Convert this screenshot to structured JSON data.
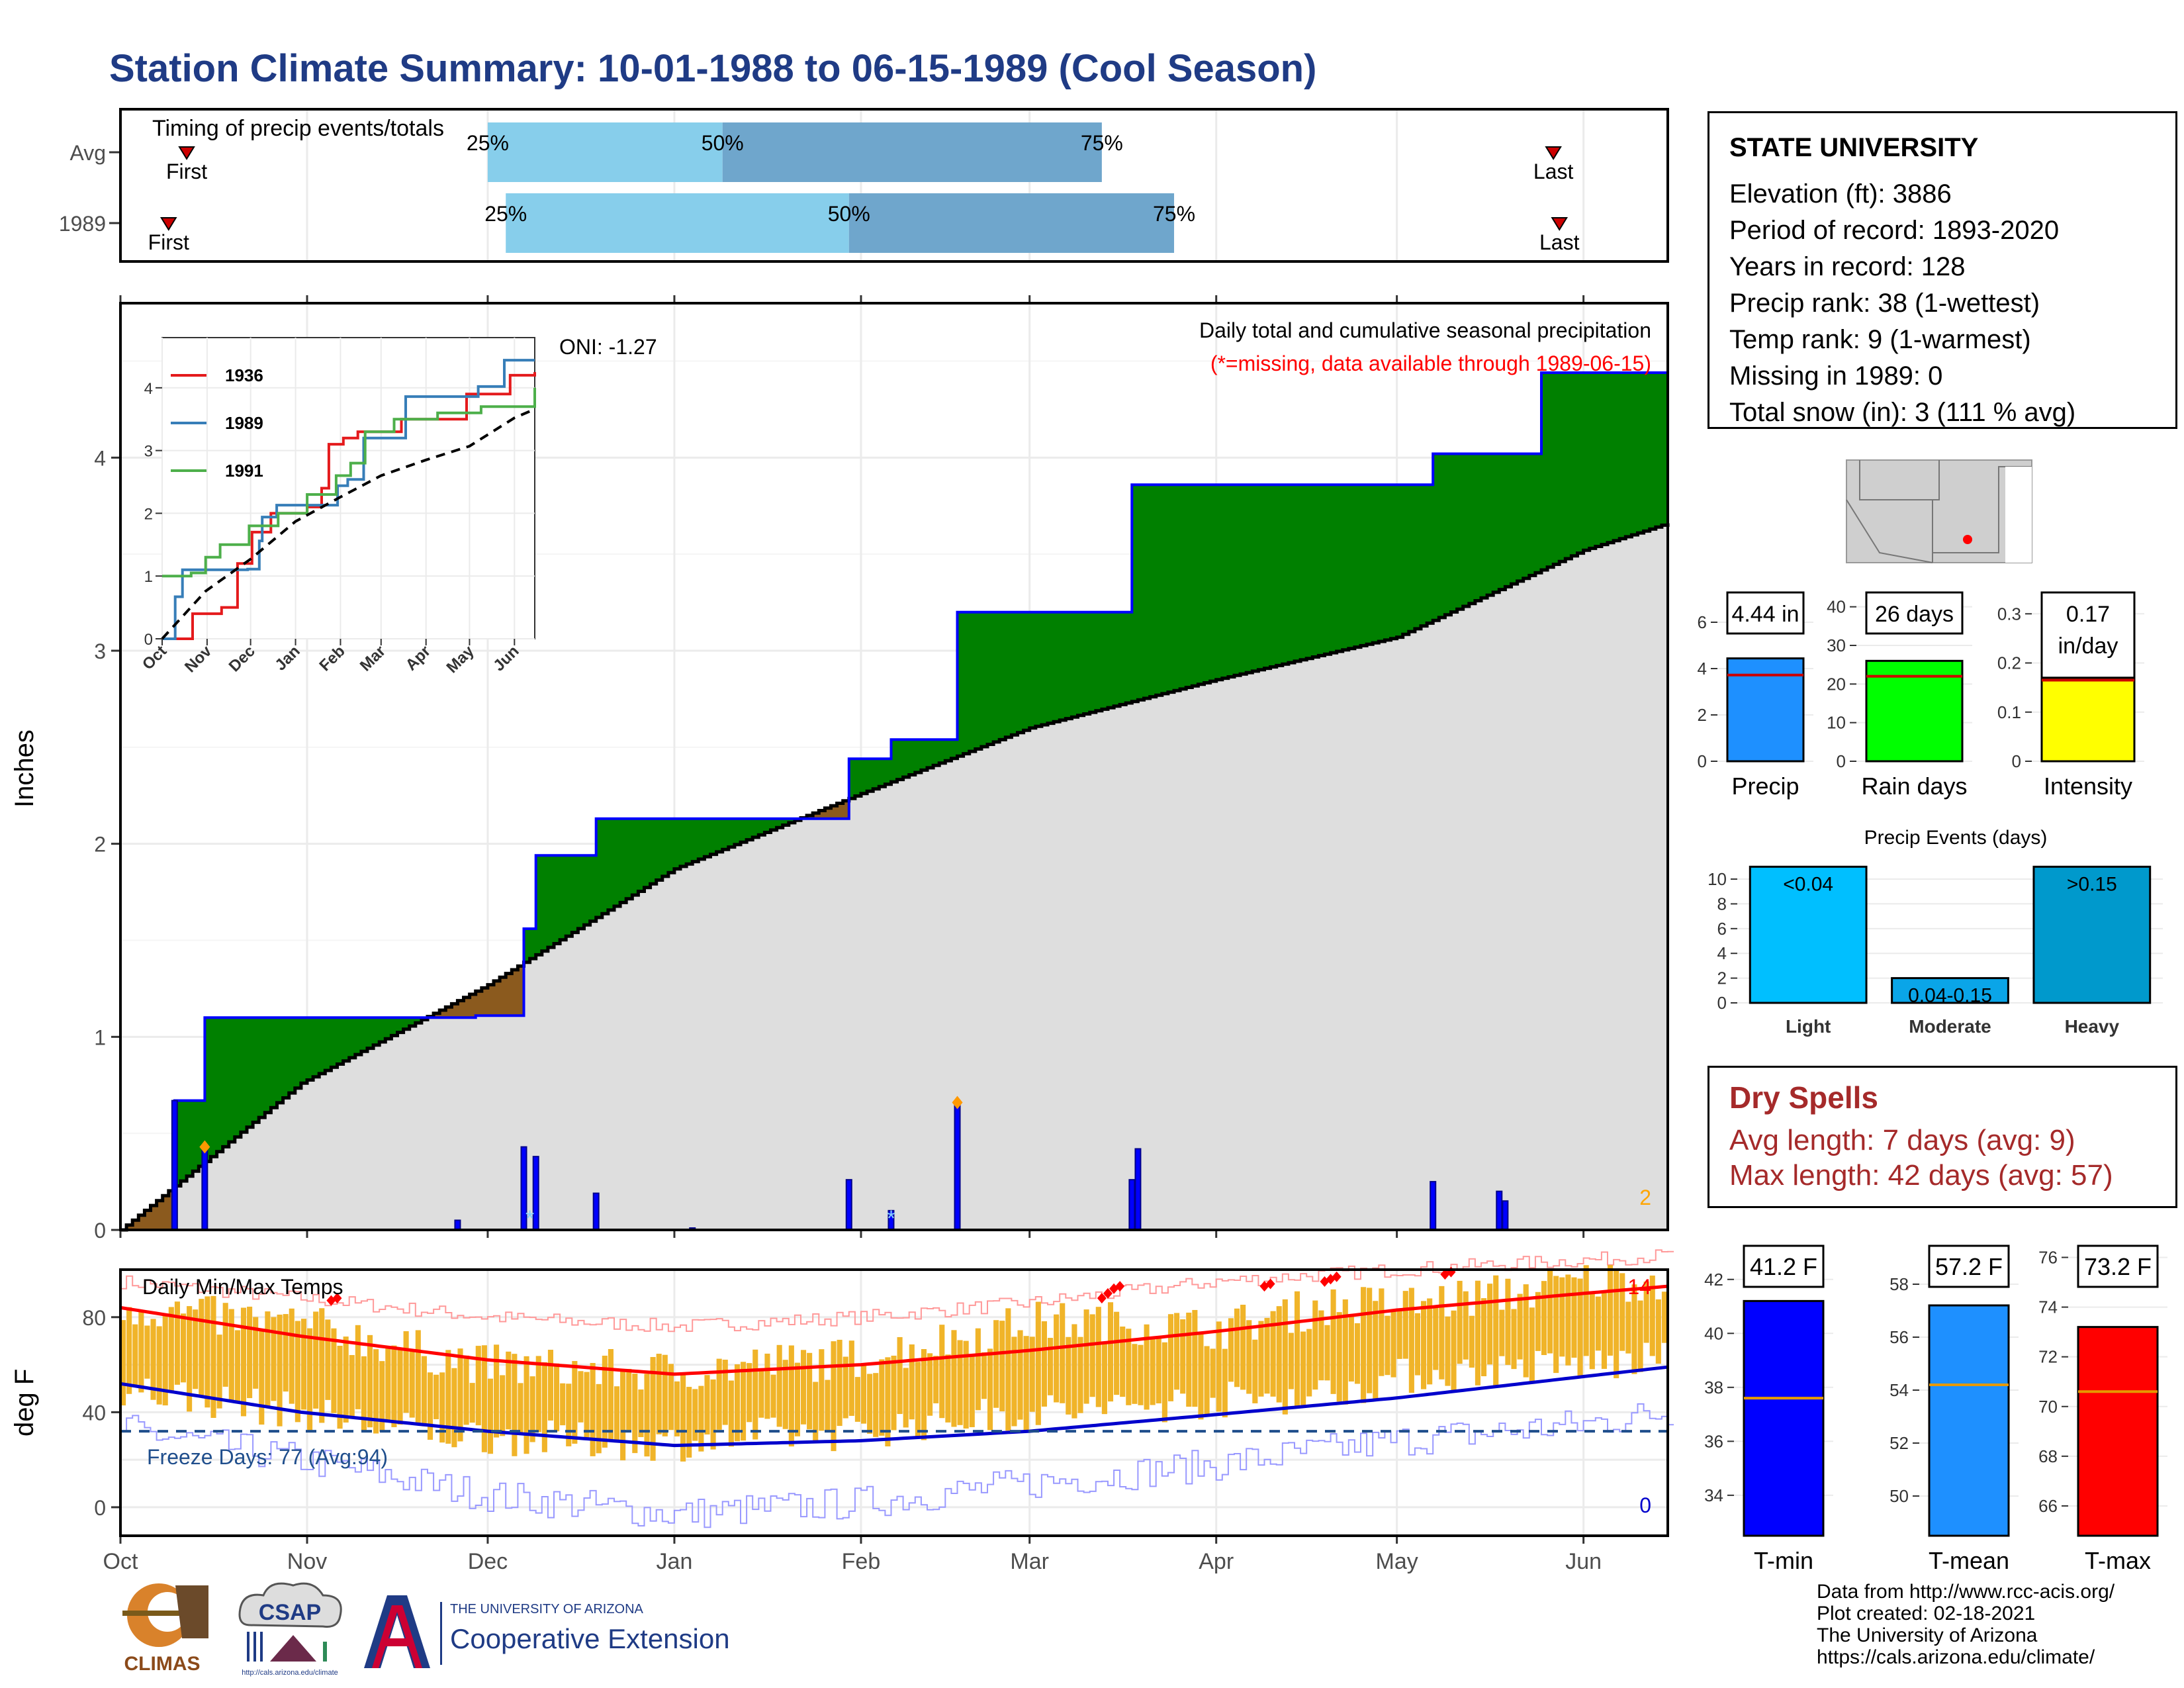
{
  "title": "Station Climate Summary: 10-01-1988 to 06-15-1989 (Cool Season)",
  "station": {
    "name": "STATE UNIVERSITY",
    "lines": [
      "Elevation (ft): 3886",
      "Period of record: 1893-2020",
      "Years in record: 128",
      "Precip rank: 38 (1-wettest)",
      "Temp rank: 9 (1-warmest)",
      "Missing in 1989: 0",
      "Total snow (in): 3 (111 % avg)"
    ]
  },
  "dry_spells": {
    "title": "Dry Spells",
    "avg": "Avg length: 7 days (avg: 9)",
    "max": "Max length: 42 days (avg: 57)"
  },
  "credits": [
    "Data from http://www.rcc-acis.org/",
    "Plot created: 02-18-2021",
    "The University of Arizona",
    "https://cals.arizona.edu/climate/"
  ],
  "logos": {
    "climas": "CLIMAS",
    "csap": "CSAP",
    "csap_url": "http://cals.arizona.edu/climate",
    "ua_small": "THE UNIVERSITY OF ARIZONA",
    "ua_big": "Cooperative Extension"
  },
  "colors": {
    "title": "#1f3b85",
    "precip_fill": "#008000",
    "deficit_fill": "#8b5a1e",
    "normal_fill": "#dedede",
    "daily_bar": "#0000ff",
    "temp_bar": "#f0b429",
    "tmax_line": "#ff0000",
    "tmin_line": "#0000cc",
    "timing_light": "#87ceeb",
    "timing_dark": "#6fa6cc",
    "dry_text": "#a52a2a"
  },
  "chart_data": [
    {
      "id": "timing",
      "type": "bar",
      "title": "Timing of precip events/totals",
      "rows": [
        {
          "label": "Avg",
          "first": "Oct 12",
          "p25": "Dec 1",
          "p50": "Jan 9",
          "p75": "Mar 13",
          "last": "May 27"
        },
        {
          "label": "1989",
          "first": "Oct 9",
          "p25": "Dec 4",
          "p50": "Jan 30",
          "p75": "Mar 25",
          "last": "May 28"
        }
      ],
      "marker_labels": {
        "first": "First",
        "last": "Last",
        "p25": "25%",
        "p50": "50%",
        "p75": "75%"
      }
    },
    {
      "id": "precip",
      "type": "area",
      "title": "Daily total and cumulative seasonal precipitation",
      "subtitle": "(*=missing, data available through 1989-06-15)",
      "ylabel": "Inches",
      "oni": "ONI: -1.27",
      "ylim": [
        0,
        4.8
      ],
      "yticks": [
        0,
        1,
        2,
        3,
        4
      ],
      "xticks": [
        "Oct",
        "Nov",
        "Dec",
        "Jan",
        "Feb",
        "Mar",
        "Apr",
        "May",
        "Jun"
      ],
      "count_label": "2",
      "cumulative_1989": [
        [
          0,
          0
        ],
        [
          9,
          0.67
        ],
        [
          14,
          1.1
        ],
        [
          59,
          1.11
        ],
        [
          67,
          1.56
        ],
        [
          69,
          1.94
        ],
        [
          79,
          2.13
        ],
        [
          121,
          2.44
        ],
        [
          128,
          2.54
        ],
        [
          139,
          3.2
        ],
        [
          168,
          3.86
        ],
        [
          218,
          4.02
        ],
        [
          236,
          4.44
        ],
        [
          257,
          4.44
        ]
      ],
      "normal_cumulative": [
        [
          0,
          0
        ],
        [
          30,
          0.76
        ],
        [
          61,
          1.27
        ],
        [
          92,
          1.87
        ],
        [
          123,
          2.26
        ],
        [
          151,
          2.6
        ],
        [
          182,
          2.85
        ],
        [
          212,
          3.07
        ],
        [
          243,
          3.52
        ],
        [
          257,
          3.66
        ]
      ],
      "daily": [
        [
          9,
          0.67
        ],
        [
          14,
          0.43
        ],
        [
          56,
          0.05
        ],
        [
          67,
          0.43
        ],
        [
          69,
          0.38
        ],
        [
          79,
          0.19
        ],
        [
          95,
          0.01
        ],
        [
          121,
          0.26
        ],
        [
          128,
          0.1
        ],
        [
          139,
          0.66
        ],
        [
          168,
          0.26
        ],
        [
          169,
          0.42
        ],
        [
          218,
          0.25
        ],
        [
          229,
          0.2
        ],
        [
          230,
          0.15
        ]
      ],
      "snow": [
        [
          68,
          0.1
        ],
        [
          128,
          0.1
        ]
      ],
      "records": [
        [
          14,
          0.43
        ],
        [
          139,
          0.66
        ]
      ]
    },
    {
      "id": "inset",
      "type": "line",
      "xticks": [
        "Oct",
        "Nov",
        "Dec",
        "Jan",
        "Feb",
        "Mar",
        "Apr",
        "May",
        "Jun"
      ],
      "ylim": [
        0,
        4.8
      ],
      "yticks": [
        0,
        1,
        2,
        3,
        4
      ],
      "series": [
        {
          "name": "1936",
          "color": "#e41a1c",
          "values": [
            [
              0,
              0
            ],
            [
              20,
              0
            ],
            [
              21,
              0.4
            ],
            [
              40,
              0.4
            ],
            [
              41,
              0.5
            ],
            [
              50,
              0.5
            ],
            [
              52,
              1.2
            ],
            [
              62,
              1.7
            ],
            [
              75,
              2.0
            ],
            [
              100,
              2.1
            ],
            [
              110,
              2.4
            ],
            [
              115,
              3.1
            ],
            [
              125,
              3.2
            ],
            [
              135,
              3.3
            ],
            [
              165,
              3.5
            ],
            [
              210,
              3.9
            ],
            [
              240,
              4.2
            ],
            [
              257,
              4.25
            ]
          ]
        },
        {
          "name": "1989",
          "color": "#377eb8",
          "values": [
            [
              0,
              0
            ],
            [
              9,
              0.67
            ],
            [
              14,
              1.1
            ],
            [
              59,
              1.11
            ],
            [
              67,
              1.56
            ],
            [
              69,
              1.94
            ],
            [
              79,
              2.13
            ],
            [
              121,
              2.44
            ],
            [
              128,
              2.54
            ],
            [
              139,
              3.2
            ],
            [
              168,
              3.86
            ],
            [
              218,
              4.02
            ],
            [
              236,
              4.44
            ],
            [
              257,
              4.44
            ]
          ]
        },
        {
          "name": "1991",
          "color": "#4daf4a",
          "values": [
            [
              0,
              1.0
            ],
            [
              20,
              1.05
            ],
            [
              30,
              1.3
            ],
            [
              40,
              1.5
            ],
            [
              60,
              1.8
            ],
            [
              80,
              2.0
            ],
            [
              100,
              2.3
            ],
            [
              120,
              2.6
            ],
            [
              130,
              2.8
            ],
            [
              140,
              3.3
            ],
            [
              160,
              3.5
            ],
            [
              190,
              3.6
            ],
            [
              220,
              3.7
            ],
            [
              257,
              4.0
            ]
          ]
        },
        {
          "name": "",
          "color": "#000000",
          "dash": true,
          "values": [
            [
              0,
              0
            ],
            [
              30,
              0.76
            ],
            [
              61,
              1.27
            ],
            [
              92,
              1.87
            ],
            [
              123,
              2.26
            ],
            [
              151,
              2.6
            ],
            [
              182,
              2.85
            ],
            [
              212,
              3.07
            ],
            [
              243,
              3.52
            ],
            [
              257,
              3.66
            ]
          ]
        }
      ]
    },
    {
      "id": "rank_bars",
      "type": "bar",
      "panels": [
        {
          "name": "Precip",
          "value": 4.44,
          "avg": 3.72,
          "label": "4.44 in",
          "ylim": [
            0,
            7
          ],
          "yticks": [
            0,
            2,
            4,
            6
          ],
          "color": "#1e90ff"
        },
        {
          "name": "Rain days",
          "value": 26,
          "avg": 22,
          "label": "26 days",
          "ylim": [
            0,
            42
          ],
          "yticks": [
            0,
            10,
            20,
            30,
            40
          ],
          "color": "#00ff00"
        },
        {
          "name": "Intensity",
          "value": 0.17,
          "avg": 0.165,
          "label": "0.17",
          "label2": "in/day",
          "ylim": [
            0,
            0.33
          ],
          "yticks": [
            0.0,
            0.1,
            0.2,
            0.3
          ],
          "color": "#ffff00"
        }
      ]
    },
    {
      "id": "events",
      "type": "bar",
      "title": "Precip Events (days)",
      "categories": [
        "Light",
        "Moderate",
        "Heavy"
      ],
      "labels": [
        "<0.04",
        "0.04-0.15",
        ">0.15"
      ],
      "values": [
        11,
        2,
        11
      ],
      "colors": [
        "#00bfff",
        "#0aa5e8",
        "#0099cc"
      ],
      "ylim": [
        0,
        11.5
      ],
      "yticks": [
        0,
        2,
        4,
        6,
        8,
        10
      ]
    },
    {
      "id": "temps",
      "type": "line",
      "title": "Daily Min/Max Temps",
      "ylabel": "deg F",
      "ylim": [
        -12,
        100
      ],
      "yticks": [
        0,
        40,
        80
      ],
      "freeze_label": "Freeze Days: 77 (Avg:94)",
      "freeze_line": 32,
      "record_high_count": "14",
      "record_low_count": "0",
      "xticks": [
        "Oct",
        "Nov",
        "Dec",
        "Jan",
        "Feb",
        "Mar",
        "Apr",
        "May",
        "Jun"
      ],
      "avg_tmax": [
        [
          0,
          84
        ],
        [
          30,
          72
        ],
        [
          61,
          62
        ],
        [
          92,
          56
        ],
        [
          123,
          60
        ],
        [
          151,
          66
        ],
        [
          182,
          74
        ],
        [
          212,
          83
        ],
        [
          243,
          90
        ],
        [
          257,
          93
        ]
      ],
      "avg_tmin": [
        [
          0,
          52
        ],
        [
          30,
          40
        ],
        [
          61,
          32
        ],
        [
          92,
          26
        ],
        [
          123,
          28
        ],
        [
          151,
          32
        ],
        [
          182,
          39
        ],
        [
          212,
          46
        ],
        [
          243,
          55
        ],
        [
          257,
          59
        ]
      ],
      "record_max": [
        [
          0,
          95
        ],
        [
          30,
          88
        ],
        [
          61,
          80
        ],
        [
          92,
          76
        ],
        [
          123,
          80
        ],
        [
          151,
          86
        ],
        [
          182,
          95
        ],
        [
          212,
          100
        ],
        [
          243,
          104
        ],
        [
          257,
          106
        ]
      ],
      "record_min": [
        [
          0,
          33
        ],
        [
          30,
          20
        ],
        [
          61,
          5
        ],
        [
          92,
          -3
        ],
        [
          123,
          2
        ],
        [
          151,
          10
        ],
        [
          182,
          18
        ],
        [
          212,
          28
        ],
        [
          243,
          35
        ],
        [
          257,
          40
        ]
      ],
      "tmax": [
        [
          0,
          85
        ],
        [
          15,
          80
        ],
        [
          30,
          77
        ],
        [
          45,
          68
        ],
        [
          60,
          60
        ],
        [
          75,
          58
        ],
        [
          92,
          57
        ],
        [
          105,
          60
        ],
        [
          123,
          63
        ],
        [
          140,
          72
        ],
        [
          151,
          78
        ],
        [
          165,
          78
        ],
        [
          182,
          75
        ],
        [
          200,
          85
        ],
        [
          212,
          85
        ],
        [
          230,
          90
        ],
        [
          243,
          95
        ],
        [
          257,
          96
        ]
      ],
      "tmin": [
        [
          0,
          50
        ],
        [
          15,
          45
        ],
        [
          30,
          40
        ],
        [
          45,
          33
        ],
        [
          60,
          30
        ],
        [
          75,
          28
        ],
        [
          92,
          27
        ],
        [
          105,
          30
        ],
        [
          123,
          32
        ],
        [
          140,
          38
        ],
        [
          151,
          40
        ],
        [
          165,
          42
        ],
        [
          182,
          45
        ],
        [
          200,
          48
        ],
        [
          212,
          55
        ],
        [
          230,
          58
        ],
        [
          243,
          60
        ],
        [
          257,
          62
        ]
      ]
    },
    {
      "id": "temp_bars",
      "type": "bar",
      "panels": [
        {
          "name": "T-min",
          "value": 41.2,
          "avg": 37.6,
          "label": "41.2 F",
          "ylim": [
            32.5,
            43
          ],
          "yticks": [
            34,
            36,
            38,
            40,
            42
          ],
          "color": "#0000ff"
        },
        {
          "name": "T-mean",
          "value": 57.2,
          "avg": 54.2,
          "label": "57.2 F",
          "ylim": [
            48.5,
            59.2
          ],
          "yticks": [
            50,
            52,
            54,
            56,
            58
          ],
          "color": "#1e90ff"
        },
        {
          "name": "T-max",
          "value": 73.2,
          "avg": 70.6,
          "label": "73.2 F",
          "ylim": [
            64.8,
            76.2
          ],
          "yticks": [
            66,
            68,
            70,
            72,
            74,
            76
          ],
          "color": "#ff0000"
        }
      ]
    }
  ]
}
